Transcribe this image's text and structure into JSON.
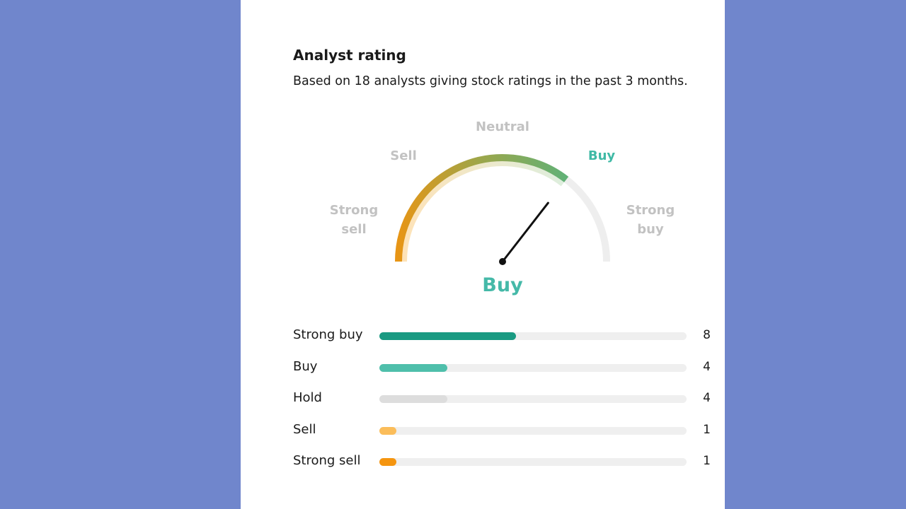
{
  "card": {
    "title": "Analyst rating",
    "subtitle": "Based on 18 analysts giving stock ratings in the past 3 months."
  },
  "gauge": {
    "labels": {
      "strong_sell": "Strong\nsell",
      "sell": "Sell",
      "neutral": "Neutral",
      "buy": "Buy",
      "strong_buy": "Strong\nbuy"
    },
    "active_label": "buy",
    "value_fraction": 0.71,
    "verdict": "Buy",
    "colors": {
      "start": "#f0930f",
      "mid": "#9ca64a",
      "end": "#5cb27a",
      "track": "#eeeeee",
      "inner_start": "#ffe2b6",
      "inner_end": "#ddeede",
      "needle": "#111111",
      "accent": "#45b9a8"
    }
  },
  "ratings": [
    {
      "label": "Strong buy",
      "count": "8",
      "value": 8,
      "color": "#1a9a82"
    },
    {
      "label": "Buy",
      "count": "4",
      "value": 4,
      "color": "#4fbfab"
    },
    {
      "label": "Hold",
      "count": "4",
      "value": 4,
      "color": "#dddddd"
    },
    {
      "label": "Sell",
      "count": "1",
      "value": 1,
      "color": "#fbbd5a"
    },
    {
      "label": "Strong sell",
      "count": "1",
      "value": 1,
      "color": "#f5950f"
    }
  ],
  "ratings_max": 18
}
